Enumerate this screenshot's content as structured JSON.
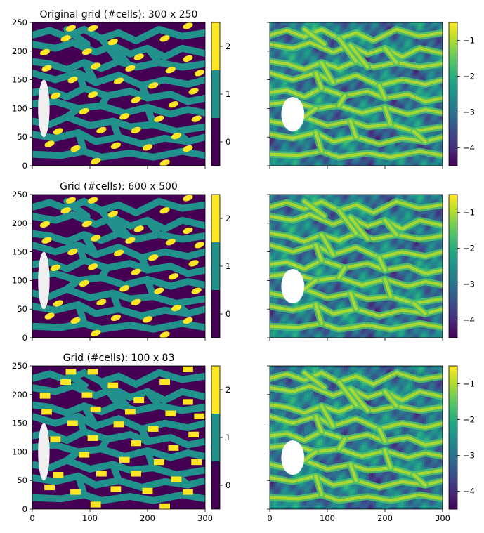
{
  "figure": {
    "rows": [
      {
        "title": "Original grid (#cells): 300 x 250",
        "cells": [
          300,
          250
        ]
      },
      {
        "title": "Grid (#cells): 600 x 500",
        "cells": [
          600,
          500
        ]
      },
      {
        "title": "Grid (#cells): 100 x 83",
        "cells": [
          100,
          83
        ]
      }
    ]
  },
  "chart_data": [
    {
      "type": "heatmap",
      "panel": "left",
      "title": "Original grid (#cells): 300 x 250",
      "xlim": [
        0,
        300
      ],
      "ylim": [
        0,
        250
      ],
      "xticks": [
        0,
        100,
        200,
        300
      ],
      "yticks": [
        0,
        50,
        100,
        150,
        200,
        250
      ],
      "x_tick_labels_shown": false,
      "colorbar": {
        "kind": "discrete",
        "values": [
          0,
          1,
          2
        ],
        "ticks": [
          0,
          1,
          2
        ],
        "colors": [
          "#440154",
          "#21918c",
          "#fde725"
        ]
      },
      "mask": {
        "shape": "ellipse",
        "center": [
          20,
          100
        ],
        "radius": [
          10,
          50
        ],
        "color": "#f0f0f0"
      }
    },
    {
      "type": "heatmap",
      "panel": "right",
      "xlim": [
        0,
        300
      ],
      "ylim": [
        0,
        250
      ],
      "xticks": [
        0,
        100,
        200,
        300
      ],
      "yticks": [
        0,
        50,
        100,
        150,
        200,
        250
      ],
      "x_tick_labels_shown": false,
      "y_tick_labels_shown": false,
      "colorbar": {
        "kind": "continuous",
        "range": [
          -4.5,
          -0.5
        ],
        "ticks": [
          -4,
          -3,
          -2,
          -1
        ],
        "colormap": "viridis"
      },
      "mask": {
        "shape": "ellipse",
        "center": [
          40,
          90
        ],
        "radius": [
          20,
          30
        ],
        "color": "#ffffff"
      }
    },
    {
      "type": "heatmap",
      "panel": "left",
      "title": "Grid (#cells): 600 x 500",
      "xlim": [
        0,
        300
      ],
      "ylim": [
        0,
        250
      ],
      "xticks": [
        0,
        100,
        200,
        300
      ],
      "yticks": [
        0,
        50,
        100,
        150,
        200,
        250
      ],
      "x_tick_labels_shown": false,
      "colorbar": {
        "kind": "discrete",
        "values": [
          0,
          1,
          2
        ],
        "ticks": [
          0,
          1,
          2
        ],
        "colors": [
          "#440154",
          "#21918c",
          "#fde725"
        ]
      },
      "mask": {
        "shape": "ellipse",
        "center": [
          20,
          100
        ],
        "radius": [
          10,
          50
        ],
        "color": "#f0f0f0"
      }
    },
    {
      "type": "heatmap",
      "panel": "right",
      "xlim": [
        0,
        300
      ],
      "ylim": [
        0,
        250
      ],
      "xticks": [
        0,
        100,
        200,
        300
      ],
      "yticks": [
        0,
        50,
        100,
        150,
        200,
        250
      ],
      "x_tick_labels_shown": false,
      "y_tick_labels_shown": false,
      "colorbar": {
        "kind": "continuous",
        "range": [
          -4.5,
          -0.5
        ],
        "ticks": [
          -4,
          -3,
          -2,
          -1
        ],
        "colormap": "viridis"
      },
      "mask": {
        "shape": "ellipse",
        "center": [
          40,
          90
        ],
        "radius": [
          20,
          30
        ],
        "color": "#ffffff"
      }
    },
    {
      "type": "heatmap",
      "panel": "left",
      "title": "Grid (#cells): 100 x 83",
      "xlim": [
        0,
        300
      ],
      "ylim": [
        0,
        250
      ],
      "xticks": [
        0,
        100,
        200,
        300
      ],
      "yticks": [
        0,
        50,
        100,
        150,
        200,
        250
      ],
      "x_tick_labels_shown": true,
      "colorbar": {
        "kind": "discrete",
        "values": [
          0,
          1,
          2
        ],
        "ticks": [
          0,
          1,
          2
        ],
        "colors": [
          "#440154",
          "#21918c",
          "#fde725"
        ]
      },
      "mask": {
        "shape": "ellipse",
        "center": [
          20,
          100
        ],
        "radius": [
          10,
          50
        ],
        "color": "#f0f0f0"
      }
    },
    {
      "type": "heatmap",
      "panel": "right",
      "xlim": [
        0,
        300
      ],
      "ylim": [
        0,
        250
      ],
      "xticks": [
        0,
        100,
        200,
        300
      ],
      "yticks": [
        0,
        50,
        100,
        150,
        200,
        250
      ],
      "x_tick_labels_shown": true,
      "y_tick_labels_shown": false,
      "colorbar": {
        "kind": "continuous",
        "range": [
          -4.5,
          -0.5
        ],
        "ticks": [
          -4,
          -3,
          -2,
          -1
        ],
        "colormap": "viridis"
      },
      "mask": {
        "shape": "ellipse",
        "center": [
          40,
          90
        ],
        "radius": [
          20,
          30
        ],
        "color": "#ffffff"
      }
    }
  ],
  "channels": {
    "paths": [
      [
        [
          0,
          228
        ],
        [
          30,
          236
        ],
        [
          60,
          225
        ],
        [
          90,
          238
        ],
        [
          120,
          222
        ],
        [
          150,
          232
        ],
        [
          180,
          218
        ],
        [
          220,
          238
        ],
        [
          260,
          226
        ],
        [
          300,
          232
        ]
      ],
      [
        [
          0,
          212
        ],
        [
          40,
          205
        ],
        [
          70,
          215
        ],
        [
          110,
          198
        ],
        [
          140,
          210
        ],
        [
          170,
          195
        ],
        [
          200,
          205
        ],
        [
          230,
          190
        ],
        [
          260,
          205
        ],
        [
          300,
          196
        ]
      ],
      [
        [
          0,
          182
        ],
        [
          30,
          178
        ],
        [
          60,
          168
        ],
        [
          90,
          180
        ],
        [
          120,
          170
        ],
        [
          150,
          182
        ],
        [
          180,
          172
        ],
        [
          220,
          180
        ],
        [
          260,
          172
        ],
        [
          300,
          178
        ]
      ],
      [
        [
          0,
          162
        ],
        [
          40,
          150
        ],
        [
          80,
          162
        ],
        [
          110,
          145
        ],
        [
          150,
          158
        ],
        [
          190,
          140
        ],
        [
          230,
          150
        ],
        [
          270,
          142
        ],
        [
          300,
          150
        ]
      ],
      [
        [
          0,
          128
        ],
        [
          30,
          132
        ],
        [
          60,
          120
        ],
        [
          90,
          135
        ],
        [
          130,
          122
        ],
        [
          170,
          130
        ],
        [
          200,
          118
        ],
        [
          240,
          125
        ],
        [
          270,
          112
        ],
        [
          300,
          118
        ]
      ],
      [
        [
          0,
          108
        ],
        [
          40,
          112
        ],
        [
          80,
          100
        ],
        [
          120,
          105
        ],
        [
          160,
          92
        ],
        [
          200,
          102
        ],
        [
          240,
          90
        ],
        [
          270,
          98
        ],
        [
          300,
          92
        ]
      ],
      [
        [
          0,
          78
        ],
        [
          30,
          72
        ],
        [
          60,
          85
        ],
        [
          100,
          70
        ],
        [
          140,
          78
        ],
        [
          170,
          68
        ],
        [
          210,
          72
        ],
        [
          250,
          60
        ],
        [
          300,
          68
        ]
      ],
      [
        [
          0,
          55
        ],
        [
          40,
          48
        ],
        [
          80,
          58
        ],
        [
          110,
          42
        ],
        [
          150,
          50
        ],
        [
          190,
          38
        ],
        [
          230,
          48
        ],
        [
          270,
          42
        ],
        [
          300,
          50
        ]
      ],
      [
        [
          0,
          20
        ],
        [
          50,
          18
        ],
        [
          90,
          25
        ],
        [
          120,
          15
        ],
        [
          170,
          22
        ],
        [
          210,
          15
        ],
        [
          260,
          25
        ],
        [
          300,
          18
        ]
      ],
      [
        [
          60,
          238
        ],
        [
          95,
          212
        ]
      ],
      [
        [
          120,
          222
        ],
        [
          150,
          182
        ]
      ],
      [
        [
          200,
          205
        ],
        [
          220,
          180
        ]
      ],
      [
        [
          140,
          210
        ],
        [
          170,
          172
        ]
      ],
      [
        [
          80,
          162
        ],
        [
          90,
          135
        ]
      ],
      [
        [
          190,
          140
        ],
        [
          200,
          118
        ]
      ],
      [
        [
          90,
          180
        ],
        [
          110,
          145
        ]
      ],
      [
        [
          120,
          105
        ],
        [
          130,
          122
        ]
      ],
      [
        [
          200,
          102
        ],
        [
          210,
          72
        ]
      ],
      [
        [
          60,
          85
        ],
        [
          80,
          100
        ]
      ],
      [
        [
          150,
          50
        ],
        [
          140,
          78
        ]
      ],
      [
        [
          90,
          25
        ],
        [
          80,
          58
        ]
      ],
      [
        [
          250,
          60
        ],
        [
          270,
          42
        ]
      ]
    ],
    "lobes": [
      [
        67,
        240
      ],
      [
        105,
        240
      ],
      [
        270,
        244
      ],
      [
        58,
        222
      ],
      [
        140,
        216
      ],
      [
        230,
        222
      ],
      [
        22,
        198
      ],
      [
        95,
        199
      ],
      [
        185,
        190
      ],
      [
        270,
        187
      ],
      [
        25,
        170
      ],
      [
        110,
        174
      ],
      [
        170,
        170
      ],
      [
        240,
        167
      ],
      [
        290,
        162
      ],
      [
        70,
        150
      ],
      [
        150,
        148
      ],
      [
        210,
        140
      ],
      [
        280,
        130
      ],
      [
        40,
        122
      ],
      [
        105,
        124
      ],
      [
        180,
        115
      ],
      [
        245,
        107
      ],
      [
        90,
        95
      ],
      [
        160,
        86
      ],
      [
        220,
        82
      ],
      [
        285,
        82
      ],
      [
        45,
        60
      ],
      [
        120,
        62
      ],
      [
        180,
        62
      ],
      [
        250,
        52
      ],
      [
        30,
        38
      ],
      [
        75,
        30
      ],
      [
        145,
        35
      ],
      [
        200,
        32
      ],
      [
        270,
        30
      ],
      [
        110,
        8
      ],
      [
        230,
        5
      ]
    ]
  }
}
